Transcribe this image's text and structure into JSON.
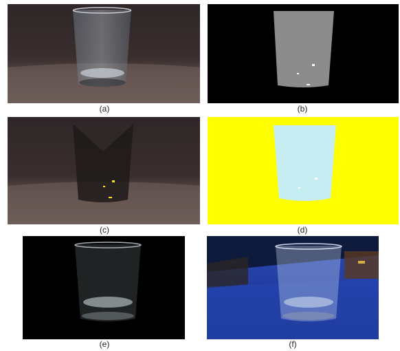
{
  "figure": {
    "panels": [
      {
        "caption": "(a)",
        "content": "glass on brown couch photo"
      },
      {
        "caption": "(b)",
        "content": "grayscale glass mask on black"
      },
      {
        "caption": "(c)",
        "content": "dark tinted glass on couch"
      },
      {
        "caption": "(d)",
        "content": "light blue glass on yellow"
      },
      {
        "caption": "(e)",
        "content": "glass on black background"
      },
      {
        "caption": "(f)",
        "content": "glass composited on blue cloth"
      }
    ]
  },
  "colors": {
    "couch": "#4a3a38",
    "mask_gray": "#8c8c8c",
    "yellow": "#ffff00",
    "light_blue": "#c6eef2",
    "blue_cloth": "#1f3fa8"
  }
}
